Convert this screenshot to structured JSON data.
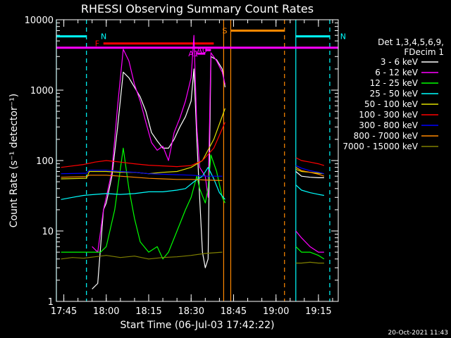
{
  "chart_data": {
    "type": "line",
    "title": "RHESSI Observing Summary Count Rates",
    "xlabel": "Start Time (06-Jul-03 17:42:22)",
    "ylabel": "Count Rate (s⁻¹ detector⁻¹)",
    "y_log": true,
    "ylim": [
      1,
      10000
    ],
    "y_ticks": [
      {
        "v": 1,
        "label": "1"
      },
      {
        "v": 10,
        "label": "10"
      },
      {
        "v": 100,
        "label": "100"
      },
      {
        "v": 1000,
        "label": "1000"
      },
      {
        "v": 10000,
        "label": "10000"
      }
    ],
    "x_range_hhmm": [
      "17:42:22",
      "19:22:00"
    ],
    "x_ticks": [
      "17:45",
      "18:00",
      "18:15",
      "18:30",
      "18:45",
      "19:00",
      "19:15"
    ],
    "legend_header": [
      "Det 1,3,4,5,6,9,",
      "FDecim 1"
    ],
    "legend_position": "right",
    "timestamp": "20-Oct-2021 11:43",
    "series": [
      {
        "name": "3 - 6 keV",
        "color": "#ffffff",
        "points": [
          [
            "17:55",
            1.5
          ],
          [
            "17:57",
            1.8
          ],
          [
            "17:59",
            20
          ],
          [
            "18:00",
            25
          ],
          [
            "18:02",
            60
          ],
          [
            "18:04",
            300
          ],
          [
            "18:06",
            1800
          ],
          [
            "18:08",
            1500
          ],
          [
            "18:10",
            1100
          ],
          [
            "18:12",
            800
          ],
          [
            "18:14",
            500
          ],
          [
            "18:16",
            250
          ],
          [
            "18:18",
            190
          ],
          [
            "18:20",
            150
          ],
          [
            "18:22",
            150
          ],
          [
            "18:24",
            200
          ],
          [
            "18:26",
            300
          ],
          [
            "18:28",
            420
          ],
          [
            "18:30",
            700
          ],
          [
            "18:31",
            2000
          ],
          [
            "18:32",
            200
          ],
          [
            "18:33",
            30
          ],
          [
            "18:34",
            5
          ],
          [
            "18:35",
            3
          ],
          [
            "18:36",
            4
          ],
          [
            "18:37",
            3000
          ],
          [
            "18:39",
            2700
          ],
          [
            "18:41",
            2000
          ],
          [
            "18:42",
            1100
          ]
        ]
      },
      {
        "name": "6 - 12 keV",
        "color": "#ff00ff",
        "points": [
          [
            "17:55",
            6
          ],
          [
            "17:57",
            5
          ],
          [
            "17:59",
            20
          ],
          [
            "18:00",
            30
          ],
          [
            "18:02",
            70
          ],
          [
            "18:04",
            600
          ],
          [
            "18:06",
            3800
          ],
          [
            "18:08",
            2600
          ],
          [
            "18:10",
            1200
          ],
          [
            "18:12",
            700
          ],
          [
            "18:14",
            350
          ],
          [
            "18:16",
            180
          ],
          [
            "18:18",
            140
          ],
          [
            "18:20",
            160
          ],
          [
            "18:22",
            100
          ],
          [
            "18:24",
            250
          ],
          [
            "18:26",
            400
          ],
          [
            "18:28",
            700
          ],
          [
            "18:30",
            1500
          ],
          [
            "18:31",
            6000
          ],
          [
            "18:32",
            300
          ],
          [
            "18:33",
            80
          ],
          [
            "18:35",
            60
          ],
          [
            "18:36",
            30
          ],
          [
            "18:37",
            3400
          ],
          [
            "18:39",
            2600
          ],
          [
            "18:41",
            1800
          ],
          [
            "18:42",
            1200
          ]
        ]
      },
      {
        "name": "12 - 25 keV",
        "color": "#00ff00",
        "points": [
          [
            "17:44",
            5
          ],
          [
            "17:55",
            5
          ],
          [
            "17:58",
            5
          ],
          [
            "18:00",
            6
          ],
          [
            "18:03",
            20
          ],
          [
            "18:06",
            150
          ],
          [
            "18:08",
            40
          ],
          [
            "18:10",
            15
          ],
          [
            "18:12",
            7
          ],
          [
            "18:15",
            5
          ],
          [
            "18:18",
            6
          ],
          [
            "18:20",
            4
          ],
          [
            "18:22",
            5
          ],
          [
            "18:25",
            10
          ],
          [
            "18:28",
            20
          ],
          [
            "18:30",
            30
          ],
          [
            "18:32",
            60
          ],
          [
            "18:33",
            40
          ],
          [
            "18:35",
            25
          ],
          [
            "18:36",
            40
          ],
          [
            "18:37",
            120
          ],
          [
            "18:39",
            70
          ],
          [
            "18:41",
            30
          ],
          [
            "18:42",
            25
          ]
        ]
      },
      {
        "name": "25 - 50 keV",
        "color": "#00ffff",
        "points": [
          [
            "17:44",
            28
          ],
          [
            "17:48",
            30
          ],
          [
            "17:52",
            32
          ],
          [
            "17:56",
            33
          ],
          [
            "18:00",
            34
          ],
          [
            "18:05",
            33
          ],
          [
            "18:10",
            34
          ],
          [
            "18:15",
            36
          ],
          [
            "18:20",
            36
          ],
          [
            "18:25",
            38
          ],
          [
            "18:28",
            40
          ],
          [
            "18:31",
            50
          ],
          [
            "18:34",
            60
          ],
          [
            "18:36",
            80
          ],
          [
            "18:38",
            55
          ],
          [
            "18:40",
            35
          ],
          [
            "18:42",
            28
          ]
        ]
      },
      {
        "name": "50 - 100 keV",
        "color": "#e0e000",
        "points": [
          [
            "17:44",
            55
          ],
          [
            "17:53",
            56
          ],
          [
            "17:54",
            70
          ],
          [
            "18:00",
            70
          ],
          [
            "18:05",
            68
          ],
          [
            "18:10",
            68
          ],
          [
            "18:15",
            65
          ],
          [
            "18:20",
            68
          ],
          [
            "18:25",
            70
          ],
          [
            "18:30",
            80
          ],
          [
            "18:34",
            100
          ],
          [
            "18:38",
            200
          ],
          [
            "18:42",
            550
          ]
        ]
      },
      {
        "name": "100 - 300 keV",
        "color": "#ff0000",
        "points": [
          [
            "17:44",
            80
          ],
          [
            "17:52",
            88
          ],
          [
            "17:56",
            95
          ],
          [
            "18:00",
            100
          ],
          [
            "18:05",
            95
          ],
          [
            "18:10",
            90
          ],
          [
            "18:15",
            86
          ],
          [
            "18:20",
            84
          ],
          [
            "18:25",
            82
          ],
          [
            "18:30",
            85
          ],
          [
            "18:34",
            100
          ],
          [
            "18:38",
            150
          ],
          [
            "18:42",
            350
          ]
        ]
      },
      {
        "name": "300 - 800 keV",
        "color": "#0000ff",
        "points": [
          [
            "17:44",
            65
          ],
          [
            "17:53",
            66
          ],
          [
            "17:54",
            73
          ],
          [
            "18:00",
            73
          ],
          [
            "18:05",
            70
          ],
          [
            "18:10",
            68
          ],
          [
            "18:15",
            65
          ],
          [
            "18:20",
            64
          ],
          [
            "18:25",
            63
          ],
          [
            "18:30",
            62
          ],
          [
            "18:35",
            60
          ],
          [
            "18:41",
            60
          ]
        ]
      },
      {
        "name": "800 - 7000 keV",
        "color": "#ff8800",
        "points": [
          [
            "17:44",
            58
          ],
          [
            "17:53",
            59
          ],
          [
            "17:54",
            62
          ],
          [
            "18:00",
            62
          ],
          [
            "18:05",
            60
          ],
          [
            "18:10",
            58
          ],
          [
            "18:15",
            56
          ],
          [
            "18:20",
            55
          ],
          [
            "18:25",
            54
          ],
          [
            "18:30",
            54
          ],
          [
            "18:35",
            53
          ],
          [
            "18:41",
            52
          ]
        ]
      },
      {
        "name": "7000 - 15000 keV",
        "color": "#808000",
        "points": [
          [
            "17:44",
            4
          ],
          [
            "17:48",
            4.2
          ],
          [
            "17:52",
            4.1
          ],
          [
            "17:56",
            4.3
          ],
          [
            "18:00",
            4.5
          ],
          [
            "18:05",
            4.2
          ],
          [
            "18:10",
            4.4
          ],
          [
            "18:15",
            4.0
          ],
          [
            "18:20",
            4.2
          ],
          [
            "18:25",
            4.3
          ],
          [
            "18:30",
            4.5
          ],
          [
            "18:35",
            4.8
          ],
          [
            "18:41",
            5
          ]
        ]
      }
    ],
    "series_after_gap": [
      {
        "color": "#ffffff",
        "points": [
          [
            "19:07",
            70
          ],
          [
            "19:09",
            60
          ],
          [
            "19:12",
            58
          ],
          [
            "19:15",
            57
          ],
          [
            "19:17",
            57
          ]
        ]
      },
      {
        "color": "#ff00ff",
        "points": [
          [
            "19:07",
            10
          ],
          [
            "19:09",
            8
          ],
          [
            "19:12",
            6
          ],
          [
            "19:15",
            5
          ],
          [
            "19:17",
            5
          ]
        ]
      },
      {
        "color": "#00ff00",
        "points": [
          [
            "19:07",
            6
          ],
          [
            "19:09",
            5
          ],
          [
            "19:12",
            5
          ],
          [
            "19:15",
            4.5
          ],
          [
            "19:17",
            4
          ]
        ]
      },
      {
        "color": "#00ffff",
        "points": [
          [
            "19:07",
            45
          ],
          [
            "19:09",
            38
          ],
          [
            "19:12",
            35
          ],
          [
            "19:15",
            33
          ],
          [
            "19:17",
            32
          ]
        ]
      },
      {
        "color": "#e0e000",
        "points": [
          [
            "19:07",
            75
          ],
          [
            "19:09",
            70
          ],
          [
            "19:12",
            68
          ],
          [
            "19:15",
            66
          ],
          [
            "19:17",
            65
          ]
        ]
      },
      {
        "color": "#ff0000",
        "points": [
          [
            "19:07",
            110
          ],
          [
            "19:09",
            100
          ],
          [
            "19:12",
            95
          ],
          [
            "19:15",
            90
          ],
          [
            "19:17",
            85
          ]
        ]
      },
      {
        "color": "#0000ff",
        "points": [
          [
            "19:07",
            85
          ],
          [
            "19:09",
            78
          ],
          [
            "19:12",
            72
          ],
          [
            "19:15",
            68
          ],
          [
            "19:17",
            65
          ]
        ]
      },
      {
        "color": "#ff8800",
        "points": [
          [
            "19:07",
            80
          ],
          [
            "19:09",
            72
          ],
          [
            "19:12",
            68
          ],
          [
            "19:15",
            64
          ],
          [
            "19:17",
            60
          ]
        ]
      },
      {
        "color": "#808000",
        "points": [
          [
            "19:07",
            3.5
          ],
          [
            "19:09",
            3.5
          ],
          [
            "19:12",
            3.6
          ],
          [
            "19:15",
            3.5
          ],
          [
            "19:17",
            3.5
          ]
        ]
      }
    ],
    "flags": [
      {
        "label": "N",
        "color": "#00ffff",
        "start": "17:42:22",
        "end": "17:53:00",
        "level": 5800,
        "dashed_lines": [
          "17:53:00"
        ]
      },
      {
        "label": "N",
        "color": "#00ffff",
        "start": "19:07:00",
        "end": "19:19:00",
        "level": 5800,
        "dashed_lines": [
          "19:19:00"
        ]
      },
      {
        "label": "F",
        "color": "#ff0000",
        "start": "17:59:00",
        "end": "18:38:00",
        "level": 4600
      },
      {
        "label": "S",
        "color": "#ff8800",
        "start": "18:44:00",
        "end": "19:03:00",
        "level": 7000,
        "dashed_lines": [
          "19:03:00"
        ]
      },
      {
        "label": "A1",
        "color": "#ff00ff",
        "start": "18:32:00",
        "end": "18:35:00",
        "level": 3300
      },
      {
        "label": "A0",
        "color": "#ff00ff",
        "start": "18:35:00",
        "end": "18:37:00",
        "level": 3700
      }
    ],
    "attenuator_level_line": {
      "color": "#ff00ff",
      "level": 4000
    },
    "vertical_lines": [
      {
        "time": "17:42:22",
        "color": "#00ffff",
        "style": "solid"
      },
      {
        "time": "17:53:00",
        "color": "#00ffff",
        "style": "dashed"
      },
      {
        "time": "18:41:30",
        "color": "#ff8800",
        "style": "solid"
      },
      {
        "time": "18:44:00",
        "color": "#ff8800",
        "style": "solid"
      },
      {
        "time": "19:03:00",
        "color": "#ff8800",
        "style": "dashed"
      },
      {
        "time": "19:07:00",
        "color": "#00ffff",
        "style": "solid"
      },
      {
        "time": "19:19:00",
        "color": "#00ffff",
        "style": "dashed"
      }
    ]
  }
}
